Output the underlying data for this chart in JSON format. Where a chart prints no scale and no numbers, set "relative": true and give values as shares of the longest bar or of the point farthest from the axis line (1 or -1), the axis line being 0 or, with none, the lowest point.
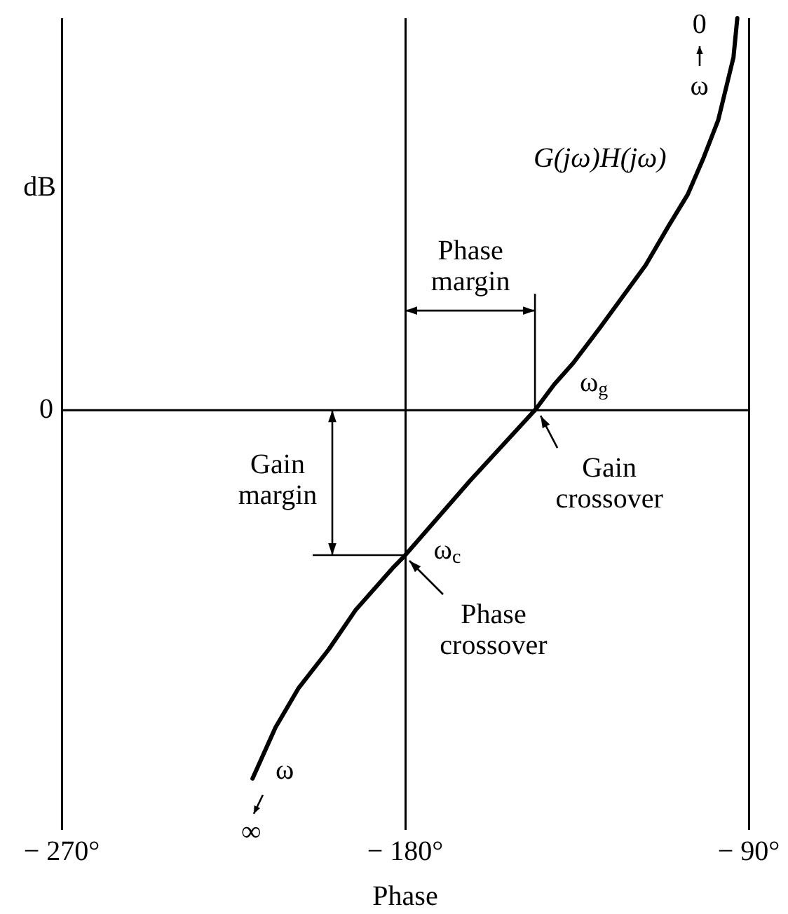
{
  "chart_data": {
    "type": "line",
    "relative": true,
    "xlabel": "Phase",
    "ylabel": "dB",
    "x": [
      -93,
      -94,
      -96,
      -98,
      -102,
      -106,
      -111,
      -117,
      -123,
      -129,
      -136,
      -141,
      -146,
      -163,
      -180,
      -183,
      -193,
      -200,
      -208,
      -214,
      -220
    ],
    "series": [
      {
        "name": "G(jω)H(jω)",
        "color": "#000000",
        "values": [
          1,
          0.9,
          0.82,
          0.74,
          0.64,
          0.55,
          0.47,
          0.37,
          0.29,
          0.21,
          0.12,
          0.065,
          0,
          -0.18,
          -0.37,
          -0.4,
          -0.51,
          -0.61,
          -0.71,
          -0.81,
          -0.94
        ]
      }
    ],
    "xlim": [
      -270,
      -90
    ],
    "xticks": [
      {
        "value": -270,
        "label": "− 270°"
      },
      {
        "value": -180,
        "label": "− 180°"
      },
      {
        "value": -90,
        "label": "− 90°"
      }
    ],
    "grid": "x",
    "legend": false,
    "marker": "none",
    "ref_lines": [
      {
        "axis": "y",
        "value": 0,
        "label": "0",
        "color": "#000000"
      }
    ],
    "annotations": [
      "0",
      "ω",
      "ω$_{g}$",
      "Phase margin",
      "Gain margin",
      "Gain crossover",
      "ω$_{c}$",
      "Phase crossover",
      "ω",
      "∞"
    ]
  }
}
